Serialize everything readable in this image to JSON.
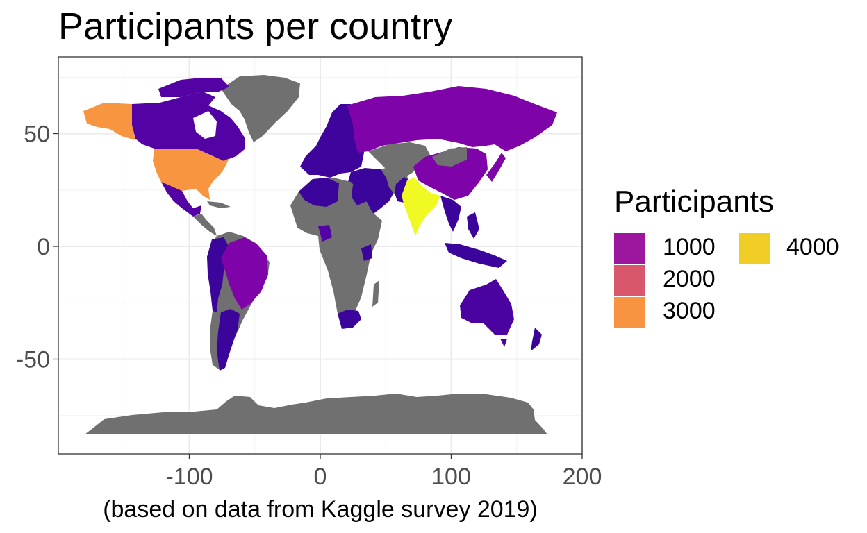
{
  "chart_data": {
    "type": "map",
    "title": "Participants per country",
    "xlabel": "(based on data from Kaggle survey 2019)",
    "ylabel": "",
    "xlim": [
      -200,
      200
    ],
    "ylim": [
      -92,
      84
    ],
    "x_ticks": [
      -100,
      0,
      100,
      200
    ],
    "x_tick_labels": [
      "-100",
      "0",
      "100",
      "200"
    ],
    "y_ticks": [
      -50,
      0,
      50
    ],
    "y_tick_labels": [
      "-50",
      "0",
      "50"
    ],
    "grid": true,
    "legend": {
      "title": "Participants",
      "position": "right",
      "entries": [
        {
          "label": "1000",
          "value": 1000,
          "color": "#9C179E"
        },
        {
          "label": "2000",
          "value": 2000,
          "color": "#D8576B"
        },
        {
          "label": "3000",
          "value": 3000,
          "color": "#F89441"
        },
        {
          "label": "4000",
          "value": 4000,
          "color": "#F0CE26"
        }
      ]
    },
    "no_data_color": "#707070",
    "regions": [
      {
        "name": "United States",
        "participants": 3000,
        "color": "#F89540"
      },
      {
        "name": "India",
        "participants": 4700,
        "color": "#F0F921"
      },
      {
        "name": "Russia",
        "participants": 900,
        "color": "#7E03A8"
      },
      {
        "name": "China",
        "participants": 800,
        "color": "#7E03A8"
      },
      {
        "name": "Brazil",
        "participants": 750,
        "color": "#7E03A8"
      },
      {
        "name": "Japan",
        "participants": 700,
        "color": "#7E03A8"
      },
      {
        "name": "Canada",
        "participants": 400,
        "color": "#5302A3"
      },
      {
        "name": "Australia",
        "participants": 300,
        "color": "#4C02A1"
      },
      {
        "name": "Mexico",
        "participants": 300,
        "color": "#5302A3"
      },
      {
        "name": "Argentina",
        "participants": 200,
        "color": "#3B049A"
      },
      {
        "name": "South Africa",
        "participants": 200,
        "color": "#3B049A"
      },
      {
        "name": "Europe",
        "participants": 250,
        "color": "#3E049C"
      }
    ]
  }
}
